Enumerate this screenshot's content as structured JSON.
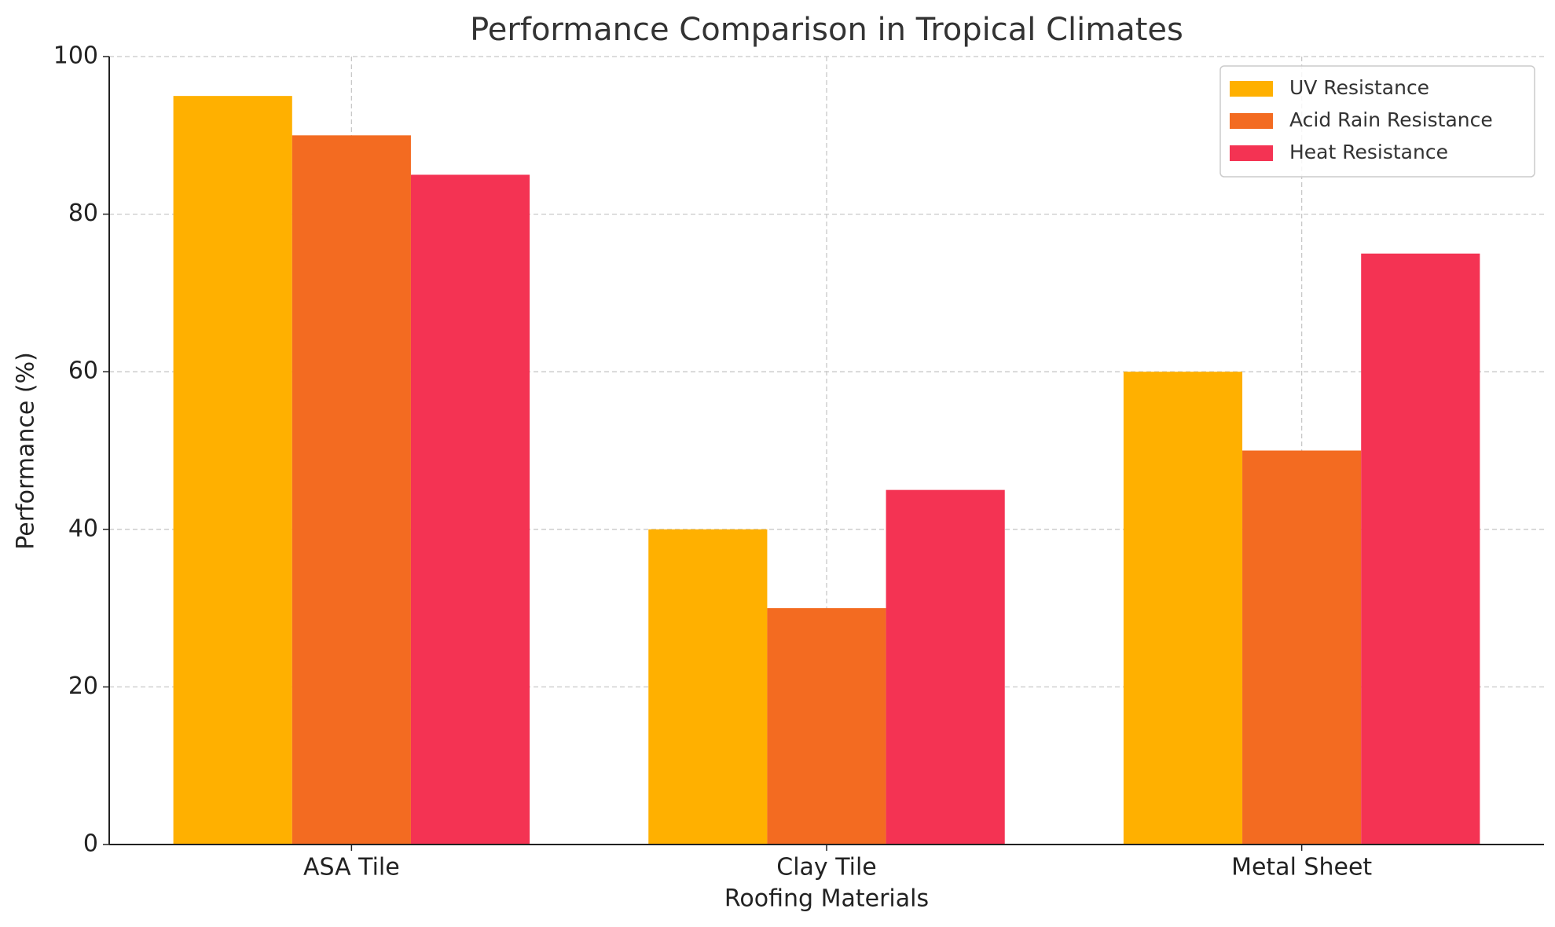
{
  "chart_data": {
    "type": "bar",
    "title": "Performance Comparison in Tropical Climates",
    "x_label": "Roofing Materials",
    "y_label": "Performance (%)",
    "categories": [
      "ASA Tile",
      "Clay Tile",
      "Metal Sheet"
    ],
    "series": [
      {
        "name": "UV Resistance",
        "color": "#ffb000",
        "values": [
          95,
          40,
          60
        ]
      },
      {
        "name": "Acid Rain Resistance",
        "color": "#f36b21",
        "values": [
          90,
          30,
          50
        ]
      },
      {
        "name": "Heat Resistance",
        "color": "#f43353",
        "values": [
          85,
          45,
          75
        ]
      }
    ],
    "ylim": [
      0,
      100
    ],
    "yticks": [
      0,
      20,
      40,
      60,
      80,
      100
    ],
    "grid": true,
    "legend": "upper right"
  }
}
